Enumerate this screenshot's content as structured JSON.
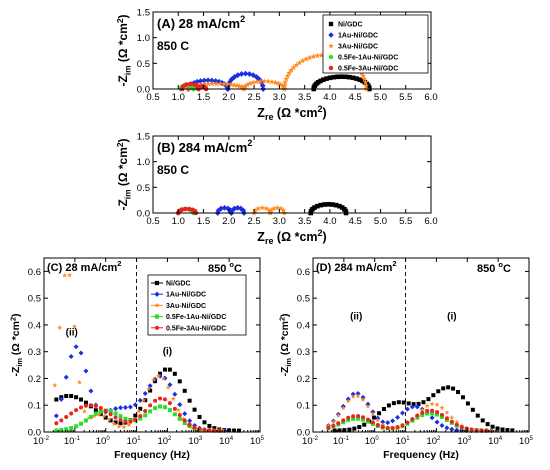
{
  "legend_labels": [
    "Ni/GDC",
    "1Au-Ni/GDC",
    "3Au-Ni/GDC",
    "0.5Fe-1Au-Ni/GDC",
    "0.5Fe-3Au-Ni/GDC"
  ],
  "panel_titles": [
    "(A) 28 mA/cm",
    "(B) 284 mA/cm",
    "(C) 28 mA/cm",
    "(D) 284 mA/cm"
  ],
  "temperature": "850 °C",
  "superscripts": {
    "sq": "2",
    "deg": "o"
  },
  "axis_text": {
    "nyq_x_main": "Z",
    "nyq_x_sub": "re",
    "nyq_x_unit": " (Ω *cm",
    "close": ")",
    "y_main": "-Z",
    "y_sub": "im",
    "y_unit": " (Ω *cm",
    "bode_x": "Frequency (Hz)"
  },
  "annotations": [
    "(ii)",
    "(i)"
  ],
  "chart_data": [
    {
      "panel": "A",
      "type": "scatter",
      "title": "(A) 28 mA/cm2",
      "condition": "850 °C",
      "xlabel": "Zre (Ω *cm2)",
      "ylabel": "-Zim (Ω *cm2)",
      "xlim": [
        0.5,
        6.0
      ],
      "ylim": [
        0.0,
        1.5
      ],
      "xticks": [
        "0.5",
        "1.0",
        "1.5",
        "2.0",
        "2.5",
        "3.0",
        "3.5",
        "4.0",
        "4.5",
        "5.0",
        "5.5",
        "6.0"
      ],
      "yticks": [
        "0.0",
        "0.5",
        "1.0",
        "1.5"
      ],
      "legend": "top-right",
      "series": [
        {
          "name": "Ni/GDC",
          "color": "#000000",
          "marker": "square",
          "arc": [
            3.68,
            4.78,
            0.24
          ]
        },
        {
          "name": "1Au-Ni/GDC",
          "color": "#1a2ee8",
          "marker": "diamond",
          "arcs": [
            [
              1.2,
              1.98,
              0.17
            ],
            [
              1.98,
              2.68,
              0.3
            ]
          ]
        },
        {
          "name": "3Au-Ni/GDC",
          "color": "#ff8a1c",
          "marker": "star",
          "arcs": [
            [
              1.2,
              2.3,
              0.1
            ],
            [
              2.3,
              3.1,
              0.15
            ],
            [
              3.1,
              4.72,
              0.66
            ]
          ]
        },
        {
          "name": "0.5Fe-1Au-Ni/GDC",
          "color": "#27e027",
          "marker": "circle",
          "arcs": [
            [
              1.05,
              1.3,
              0.08
            ],
            [
              1.3,
              1.4,
              0.03
            ]
          ]
        },
        {
          "name": "0.5Fe-3Au-Ni/GDC",
          "color": "#ee2020",
          "marker": "circle",
          "arcs": [
            [
              1.08,
              1.4,
              0.1
            ],
            [
              1.4,
              1.55,
              0.05
            ]
          ]
        }
      ]
    },
    {
      "panel": "B",
      "type": "scatter",
      "title": "(B) 284 mA/cm2",
      "condition": "850 °C",
      "xlabel": "Zre (Ω *cm2)",
      "ylabel": "-Zim (Ω *cm2)",
      "xlim": [
        0.5,
        6.0
      ],
      "ylim": [
        0.0,
        1.5
      ],
      "xticks": [
        "0.5",
        "1.0",
        "1.5",
        "2.0",
        "2.5",
        "3.0",
        "3.5",
        "4.0",
        "4.5",
        "5.0",
        "5.5",
        "6.0"
      ],
      "yticks": [
        "0.0",
        "0.5",
        "1.0",
        "1.5"
      ],
      "series": [
        {
          "name": "Ni/GDC",
          "color": "#000000",
          "marker": "square",
          "arc": [
            3.62,
            4.32,
            0.17
          ]
        },
        {
          "name": "1Au-Ni/GDC",
          "color": "#1a2ee8",
          "marker": "diamond",
          "arcs": [
            [
              1.78,
              2.05,
              0.1
            ],
            [
              2.05,
              2.3,
              0.1
            ]
          ]
        },
        {
          "name": "3Au-Ni/GDC",
          "color": "#ff8a1c",
          "marker": "star",
          "arcs": [
            [
              2.5,
              2.82,
              0.1
            ],
            [
              2.82,
              3.1,
              0.1
            ]
          ]
        },
        {
          "name": "0.5Fe-1Au-Ni/GDC",
          "color": "#27e027",
          "marker": "circle",
          "arc": [
            1.0,
            1.3,
            0.08
          ]
        },
        {
          "name": "0.5Fe-3Au-Ni/GDC",
          "color": "#ee2020",
          "marker": "circle",
          "arc": [
            1.0,
            1.35,
            0.08
          ]
        }
      ]
    },
    {
      "panel": "C",
      "type": "scatter",
      "title": "(C) 28 mA/cm2",
      "condition": "850 °C",
      "xlabel": "Frequency (Hz)",
      "ylabel": "-Zim (Ω *cm2)",
      "xscale": "log",
      "xlim": [
        0.01,
        100000
      ],
      "ylim": [
        0.0,
        0.65
      ],
      "xticks": [
        "10-2",
        "10-1",
        "100",
        "101",
        "102",
        "103",
        "104",
        "105"
      ],
      "yticks": [
        "0.0",
        "0.1",
        "0.2",
        "0.3",
        "0.4",
        "0.5",
        "0.6"
      ],
      "vline": 10,
      "annotations": [
        "(ii)",
        "(i)"
      ],
      "legend": "top-right",
      "series": [
        {
          "name": "Ni/GDC",
          "color": "#000000",
          "marker": "square",
          "peaks": [
            [
              -1.2,
              0.13,
              0.85
            ],
            [
              2.0,
              0.23,
              0.6
            ]
          ],
          "range": [
            -1.6,
            4.45
          ]
        },
        {
          "name": "1Au-Ni/GDC",
          "color": "#1a2ee8",
          "marker": "diamond",
          "peaks": [
            [
              -0.95,
              0.31,
              0.35
            ],
            [
              0.4,
              0.08,
              0.55
            ],
            [
              1.8,
              0.2,
              0.5
            ]
          ],
          "range": [
            -1.6,
            3.9
          ]
        },
        {
          "name": "3Au-Ni/GDC",
          "color": "#ff8a1c",
          "marker": "star",
          "peaks": [
            [
              -1.25,
              0.61,
              0.25
            ],
            [
              -0.2,
              0.06,
              0.35
            ],
            [
              1.72,
              0.205,
              0.45
            ]
          ],
          "range": [
            -1.65,
            3.9
          ]
        },
        {
          "name": "0.5Fe-1Au-Ni/GDC",
          "color": "#27e027",
          "marker": "square",
          "peaks": [
            [
              0.0,
              0.075,
              0.55
            ],
            [
              1.8,
              0.09,
              0.5
            ]
          ],
          "range": [
            -1.6,
            3.75
          ]
        },
        {
          "name": "0.5Fe-3Au-Ni/GDC",
          "color": "#ee2020",
          "marker": "circle",
          "peaks": [
            [
              -0.5,
              0.095,
              0.7
            ],
            [
              1.8,
              0.12,
              0.5
            ]
          ],
          "range": [
            -1.6,
            3.75
          ]
        }
      ]
    },
    {
      "panel": "D",
      "type": "scatter",
      "title": "(D) 284 mA/cm2",
      "condition": "850 °C",
      "xlabel": "Frequency (Hz)",
      "ylabel": "-Zim (Ω *cm2)",
      "xscale": "log",
      "xlim": [
        0.01,
        100000
      ],
      "ylim": [
        0.0,
        0.65
      ],
      "xticks": [
        "10-2",
        "10-1",
        "100",
        "101",
        "102",
        "103",
        "104",
        "105"
      ],
      "yticks": [
        "0.0",
        "0.1",
        "0.2",
        "0.3",
        "0.4",
        "0.5",
        "0.6"
      ],
      "vline": 10,
      "annotations": [
        "(ii)",
        "(i)"
      ],
      "series": [
        {
          "name": "Ni/GDC",
          "color": "#000000",
          "marker": "square",
          "peaks": [
            [
              0.7,
              0.1,
              0.6
            ],
            [
              2.4,
              0.16,
              0.65
            ]
          ],
          "range": [
            -1.3,
            4.5
          ]
        },
        {
          "name": "1Au-Ni/GDC",
          "color": "#1a2ee8",
          "marker": "diamond",
          "peaks": [
            [
              -0.6,
              0.14,
              0.45
            ],
            [
              1.3,
              0.09,
              0.5
            ]
          ],
          "range": [
            -1.5,
            3.9
          ]
        },
        {
          "name": "3Au-Ni/GDC",
          "color": "#ff8a1c",
          "marker": "star",
          "peaks": [
            [
              -0.6,
              0.13,
              0.45
            ],
            [
              1.9,
              0.1,
              0.5
            ]
          ],
          "range": [
            -1.5,
            3.9
          ]
        },
        {
          "name": "0.5Fe-1Au-Ni/GDC",
          "color": "#27e027",
          "marker": "square",
          "peaks": [
            [
              -0.6,
              0.045,
              0.5
            ],
            [
              1.8,
              0.065,
              0.55
            ]
          ],
          "range": [
            -1.5,
            3.75
          ]
        },
        {
          "name": "0.5Fe-3Au-Ni/GDC",
          "color": "#ee2020",
          "marker": "circle",
          "peaks": [
            [
              -0.6,
              0.055,
              0.5
            ],
            [
              1.8,
              0.075,
              0.55
            ]
          ],
          "range": [
            -1.5,
            3.75
          ]
        }
      ]
    }
  ]
}
